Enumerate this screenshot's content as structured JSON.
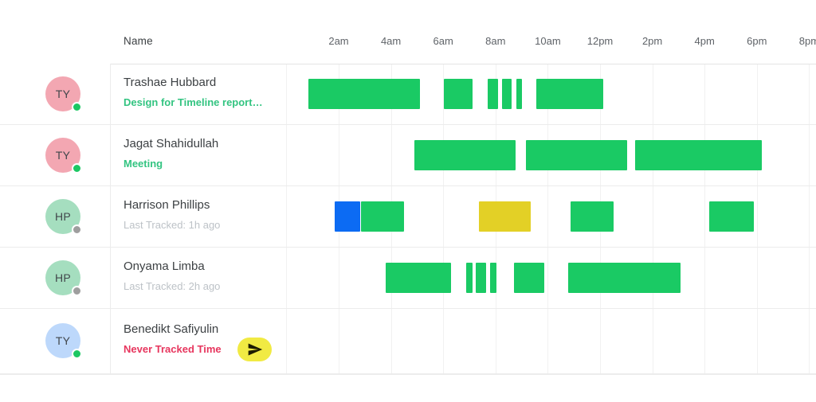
{
  "header": {
    "name_column_label": "Name",
    "hours": [
      {
        "label": "2am",
        "hour": 2
      },
      {
        "label": "4am",
        "hour": 4
      },
      {
        "label": "6am",
        "hour": 6
      },
      {
        "label": "8am",
        "hour": 8
      },
      {
        "label": "10am",
        "hour": 10
      },
      {
        "label": "12pm",
        "hour": 12
      },
      {
        "label": "2pm",
        "hour": 14
      },
      {
        "label": "4pm",
        "hour": 16
      },
      {
        "label": "6pm",
        "hour": 18
      },
      {
        "label": "8pm",
        "hour": 20
      }
    ],
    "gridline_hours": [
      0,
      2,
      4,
      6,
      8,
      10,
      12,
      14,
      16,
      18,
      20
    ]
  },
  "colors": {
    "bar_green": "#1aca64",
    "bar_blue": "#0c6bf3",
    "bar_yellow": "#e3d026",
    "status_online": "#1cc763",
    "status_offline": "#9e9e9e",
    "send_pill_bg": "#f1ea43",
    "send_icon": "#1c1b00"
  },
  "rows": [
    {
      "name": "Trashae Hubbard",
      "subtitle": "Design for Timeline report…",
      "subtitle_type": "task",
      "avatar": {
        "initials": "TY",
        "bg": "#f3a7b2",
        "status": "online"
      },
      "bars": [
        {
          "start": 0.85,
          "end": 5.11,
          "color": "bar_green"
        },
        {
          "start": 6.02,
          "end": 7.12,
          "color": "bar_green"
        },
        {
          "start": 7.7,
          "end": 8.1,
          "color": "bar_green"
        },
        {
          "start": 8.25,
          "end": 8.62,
          "color": "bar_green"
        },
        {
          "start": 8.8,
          "end": 9.02,
          "color": "bar_green"
        },
        {
          "start": 9.56,
          "end": 12.12,
          "color": "bar_green"
        }
      ]
    },
    {
      "name": "Jagat Shahidullah",
      "subtitle": "Meeting",
      "subtitle_type": "task",
      "avatar": {
        "initials": "TY",
        "bg": "#f3a7b2",
        "status": "online"
      },
      "bars": [
        {
          "start": 4.9,
          "end": 8.78,
          "color": "bar_green"
        },
        {
          "start": 9.17,
          "end": 13.04,
          "color": "bar_green"
        },
        {
          "start": 13.35,
          "end": 18.2,
          "color": "bar_green"
        }
      ]
    },
    {
      "name": "Harrison Phillips",
      "subtitle": "Last Tracked: 1h ago",
      "subtitle_type": "idle",
      "avatar": {
        "initials": "HP",
        "bg": "#a5debf",
        "status": "offline"
      },
      "bars": [
        {
          "start": 1.86,
          "end": 2.83,
          "color": "bar_blue"
        },
        {
          "start": 2.86,
          "end": 4.5,
          "color": "bar_green"
        },
        {
          "start": 7.35,
          "end": 9.36,
          "color": "bar_yellow"
        },
        {
          "start": 10.88,
          "end": 12.53,
          "color": "bar_green"
        },
        {
          "start": 16.18,
          "end": 17.88,
          "color": "bar_green"
        }
      ]
    },
    {
      "name": "Onyama Limba",
      "subtitle": "Last Tracked: 2h ago",
      "subtitle_type": "idle",
      "avatar": {
        "initials": "HP",
        "bg": "#a5debf",
        "status": "offline"
      },
      "bars": [
        {
          "start": 3.8,
          "end": 6.3,
          "color": "bar_green"
        },
        {
          "start": 6.89,
          "end": 7.13,
          "color": "bar_green"
        },
        {
          "start": 7.25,
          "end": 7.65,
          "color": "bar_green"
        },
        {
          "start": 7.8,
          "end": 8.04,
          "color": "bar_green"
        },
        {
          "start": 8.72,
          "end": 9.88,
          "color": "bar_green"
        },
        {
          "start": 10.79,
          "end": 15.09,
          "color": "bar_green"
        }
      ]
    },
    {
      "name": "Benedikt Safiyulin",
      "subtitle": "Never Tracked Time",
      "subtitle_type": "never",
      "avatar": {
        "initials": "TY",
        "bg": "#bdd8fb",
        "status": "online"
      },
      "has_send_button": true,
      "bars": []
    }
  ]
}
